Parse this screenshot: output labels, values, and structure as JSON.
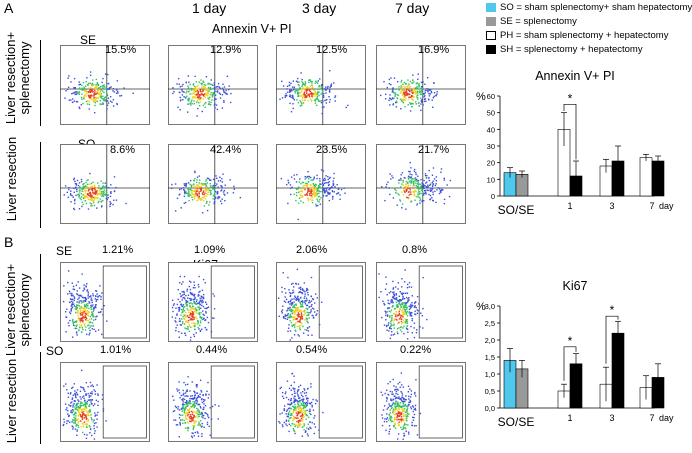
{
  "panels": {
    "a": "A",
    "b": "B"
  },
  "days": [
    "1 day",
    "3 day",
    "7 day"
  ],
  "row_labels": {
    "top": [
      "Liver resection+",
      "splenectomy"
    ],
    "bottom": "Liver resection"
  },
  "section_a": {
    "title": "Annexin V+ PI",
    "row_tags": [
      "SE",
      "SO"
    ],
    "percent_top": [
      "15.5%",
      "12.9%",
      "12.5%",
      "16.9%"
    ],
    "percent_bottom": [
      "8.6%",
      "42.4%",
      "23.5%",
      "21.7%"
    ]
  },
  "section_b": {
    "title": "Ki67",
    "row_tags": [
      "SE",
      "SO"
    ],
    "percent_top": [
      "1.21%",
      "1.09%",
      "2.06%",
      "0.8%"
    ],
    "percent_bottom": [
      "1.01%",
      "0.44%",
      "0.54%",
      "0.22%"
    ]
  },
  "legend": [
    {
      "label": "SO = sham splenectomy+ sham hepatectomy",
      "color": "#4fc8ec",
      "outline": false
    },
    {
      "label": "SE = splenectomy",
      "color": "#999999",
      "outline": false
    },
    {
      "label": "PH = sham splenectomy + hepatectomy",
      "color": "#ffffff",
      "outline": true
    },
    {
      "label": "SH = splenectomy + hepatectomy",
      "color": "#000000",
      "outline": false
    }
  ],
  "chart_data": [
    {
      "type": "bar",
      "title": "Annexin V+ PI",
      "ylabel": "%",
      "xlabel": "day",
      "ylim": [
        0,
        60
      ],
      "yticks": [
        "0",
        "10",
        "20",
        "30",
        "40",
        "50",
        "60"
      ],
      "categories": [
        "SO/SE",
        "1",
        "3",
        "7"
      ],
      "series": [
        {
          "name": "SO",
          "values": [
            14,
            null,
            null,
            null
          ],
          "errors": [
            3,
            null,
            null,
            null
          ],
          "color": "#4fc8ec"
        },
        {
          "name": "SE",
          "values": [
            13,
            null,
            null,
            null
          ],
          "errors": [
            2,
            null,
            null,
            null
          ],
          "color": "#999999"
        },
        {
          "name": "PH",
          "values": [
            null,
            40,
            18,
            23
          ],
          "errors": [
            null,
            10,
            4,
            2
          ],
          "color": "#ffffff"
        },
        {
          "name": "SH",
          "values": [
            null,
            12,
            21,
            21
          ],
          "errors": [
            null,
            9,
            9,
            3
          ],
          "color": "#000000"
        }
      ],
      "annotations": [
        "*"
      ]
    },
    {
      "type": "bar",
      "title": "Ki67",
      "ylabel": "%",
      "xlabel": "day",
      "ylim": [
        0,
        3
      ],
      "yticks": [
        "0,0",
        "0,5",
        "1,0",
        "1,5",
        "2,0",
        "2,5",
        "3,0"
      ],
      "categories": [
        "SO/SE",
        "1",
        "3",
        "7"
      ],
      "series": [
        {
          "name": "SO",
          "values": [
            1.4,
            null,
            null,
            null
          ],
          "errors": [
            0.35,
            null,
            null,
            null
          ],
          "color": "#4fc8ec"
        },
        {
          "name": "SE",
          "values": [
            1.15,
            null,
            null,
            null
          ],
          "errors": [
            0.25,
            null,
            null,
            null
          ],
          "color": "#999999"
        },
        {
          "name": "PH",
          "values": [
            null,
            0.5,
            0.7,
            0.6
          ],
          "errors": [
            null,
            0.2,
            0.5,
            0.35
          ],
          "color": "#ffffff"
        },
        {
          "name": "SH",
          "values": [
            null,
            1.3,
            2.2,
            0.9
          ],
          "errors": [
            null,
            0.3,
            0.35,
            0.4
          ],
          "color": "#000000"
        }
      ],
      "annotations": [
        "*",
        "*"
      ]
    }
  ]
}
